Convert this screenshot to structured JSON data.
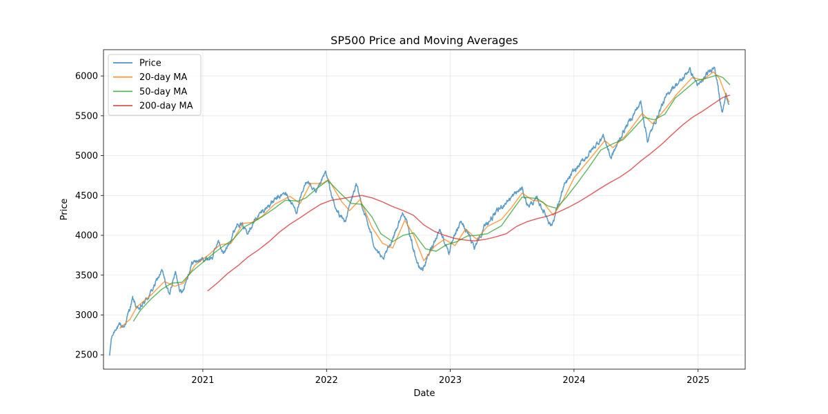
{
  "chart_data": {
    "type": "line",
    "title": "SP500 Price and Moving Averages",
    "xlabel": "Date",
    "ylabel": "Price",
    "x_range": [
      "2020-03-14",
      "2025-05-20"
    ],
    "ylim": [
      2320,
      6330
    ],
    "x_ticks": [
      {
        "date": "2021-01-01",
        "label": "2021"
      },
      {
        "date": "2022-01-01",
        "label": "2022"
      },
      {
        "date": "2023-01-01",
        "label": "2023"
      },
      {
        "date": "2024-01-01",
        "label": "2024"
      },
      {
        "date": "2025-01-01",
        "label": "2025"
      }
    ],
    "y_ticks": [
      2500,
      3000,
      3500,
      4000,
      4500,
      5000,
      5500,
      6000
    ],
    "grid": true,
    "legend_position": "top-left",
    "series": [
      {
        "name": "Price",
        "color": "#1f77b4",
        "noise": true,
        "points": [
          [
            "2020-04-01",
            2490
          ],
          [
            "2020-04-06",
            2700
          ],
          [
            "2020-04-20",
            2850
          ],
          [
            "2020-05-15",
            2860
          ],
          [
            "2020-06-08",
            3200
          ],
          [
            "2020-06-25",
            3050
          ],
          [
            "2020-08-01",
            3280
          ],
          [
            "2020-09-02",
            3560
          ],
          [
            "2020-09-23",
            3250
          ],
          [
            "2020-10-12",
            3530
          ],
          [
            "2020-10-30",
            3270
          ],
          [
            "2020-12-01",
            3660
          ],
          [
            "2021-01-04",
            3700
          ],
          [
            "2021-01-29",
            3720
          ],
          [
            "2021-02-15",
            3930
          ],
          [
            "2021-03-04",
            3760
          ],
          [
            "2021-04-15",
            4170
          ],
          [
            "2021-05-12",
            4060
          ],
          [
            "2021-06-15",
            4250
          ],
          [
            "2021-07-15",
            4380
          ],
          [
            "2021-08-15",
            4480
          ],
          [
            "2021-09-02",
            4530
          ],
          [
            "2021-10-04",
            4300
          ],
          [
            "2021-11-05",
            4700
          ],
          [
            "2021-12-01",
            4510
          ],
          [
            "2021-12-29",
            4790
          ],
          [
            "2022-01-27",
            4330
          ],
          [
            "2022-02-24",
            4170
          ],
          [
            "2022-03-29",
            4630
          ],
          [
            "2022-05-20",
            3900
          ],
          [
            "2022-06-16",
            3670
          ],
          [
            "2022-08-16",
            4300
          ],
          [
            "2022-09-30",
            3590
          ],
          [
            "2022-10-12",
            3580
          ],
          [
            "2022-11-30",
            4080
          ],
          [
            "2022-12-28",
            3790
          ],
          [
            "2023-02-02",
            4180
          ],
          [
            "2023-03-13",
            3860
          ],
          [
            "2023-04-15",
            4130
          ],
          [
            "2023-06-15",
            4420
          ],
          [
            "2023-07-31",
            4590
          ],
          [
            "2023-08-18",
            4370
          ],
          [
            "2023-09-15",
            4450
          ],
          [
            "2023-10-27",
            4120
          ],
          [
            "2023-12-01",
            4600
          ],
          [
            "2023-12-28",
            4780
          ],
          [
            "2024-02-15",
            5030
          ],
          [
            "2024-03-28",
            5250
          ],
          [
            "2024-04-19",
            4970
          ],
          [
            "2024-05-25",
            5300
          ],
          [
            "2024-07-16",
            5670
          ],
          [
            "2024-08-05",
            5190
          ],
          [
            "2024-09-15",
            5620
          ],
          [
            "2024-10-15",
            5850
          ],
          [
            "2024-11-15",
            5950
          ],
          [
            "2024-12-06",
            6090
          ],
          [
            "2025-01-02",
            5870
          ],
          [
            "2025-02-19",
            6140
          ],
          [
            "2025-03-13",
            5530
          ],
          [
            "2025-03-25",
            5770
          ],
          [
            "2025-04-03",
            5640
          ]
        ]
      },
      {
        "name": "20-day MA",
        "color": "#ff7f0e",
        "noise": false,
        "points": [
          [
            "2020-05-01",
            2830
          ],
          [
            "2020-06-01",
            2950
          ],
          [
            "2020-06-20",
            3100
          ],
          [
            "2020-08-01",
            3250
          ],
          [
            "2020-09-10",
            3420
          ],
          [
            "2020-10-10",
            3360
          ],
          [
            "2020-11-05",
            3400
          ],
          [
            "2020-12-10",
            3630
          ],
          [
            "2021-01-20",
            3760
          ],
          [
            "2021-02-20",
            3880
          ],
          [
            "2021-03-25",
            3900
          ],
          [
            "2021-04-30",
            4150
          ],
          [
            "2021-05-25",
            4160
          ],
          [
            "2021-06-25",
            4240
          ],
          [
            "2021-08-01",
            4390
          ],
          [
            "2021-09-15",
            4490
          ],
          [
            "2021-10-15",
            4400
          ],
          [
            "2021-11-15",
            4650
          ],
          [
            "2021-12-20",
            4650
          ],
          [
            "2022-01-07",
            4700
          ],
          [
            "2022-02-15",
            4420
          ],
          [
            "2022-03-10",
            4310
          ],
          [
            "2022-04-10",
            4450
          ],
          [
            "2022-05-15",
            4100
          ],
          [
            "2022-06-15",
            3900
          ],
          [
            "2022-07-15",
            3840
          ],
          [
            "2022-08-20",
            4190
          ],
          [
            "2022-09-15",
            4000
          ],
          [
            "2022-10-15",
            3680
          ],
          [
            "2022-11-15",
            3860
          ],
          [
            "2022-12-15",
            3950
          ],
          [
            "2023-01-15",
            3870
          ],
          [
            "2023-02-15",
            4080
          ],
          [
            "2023-03-20",
            3950
          ],
          [
            "2023-04-20",
            4110
          ],
          [
            "2023-06-01",
            4200
          ],
          [
            "2023-07-01",
            4350
          ],
          [
            "2023-08-01",
            4530
          ],
          [
            "2023-09-01",
            4440
          ],
          [
            "2023-10-01",
            4420
          ],
          [
            "2023-11-01",
            4250
          ],
          [
            "2023-12-01",
            4450
          ],
          [
            "2024-01-01",
            4720
          ],
          [
            "2024-02-15",
            4950
          ],
          [
            "2024-04-01",
            5190
          ],
          [
            "2024-04-25",
            5100
          ],
          [
            "2024-06-01",
            5250
          ],
          [
            "2024-07-20",
            5530
          ],
          [
            "2024-08-20",
            5400
          ],
          [
            "2024-09-25",
            5580
          ],
          [
            "2024-11-01",
            5780
          ],
          [
            "2024-12-15",
            5980
          ],
          [
            "2025-01-15",
            5950
          ],
          [
            "2025-02-15",
            6050
          ],
          [
            "2025-03-05",
            5970
          ],
          [
            "2025-03-20",
            5800
          ],
          [
            "2025-04-03",
            5670
          ]
        ]
      },
      {
        "name": "50-day MA",
        "color": "#2ca02c",
        "noise": false,
        "points": [
          [
            "2020-06-10",
            2920
          ],
          [
            "2020-07-01",
            3060
          ],
          [
            "2020-08-01",
            3200
          ],
          [
            "2020-09-01",
            3320
          ],
          [
            "2020-10-01",
            3400
          ],
          [
            "2020-11-01",
            3410
          ],
          [
            "2020-12-01",
            3550
          ],
          [
            "2021-01-01",
            3660
          ],
          [
            "2021-02-01",
            3770
          ],
          [
            "2021-03-01",
            3860
          ],
          [
            "2021-04-01",
            3950
          ],
          [
            "2021-05-01",
            4100
          ],
          [
            "2021-06-01",
            4170
          ],
          [
            "2021-07-01",
            4250
          ],
          [
            "2021-08-01",
            4340
          ],
          [
            "2021-09-01",
            4440
          ],
          [
            "2021-10-10",
            4430
          ],
          [
            "2021-11-01",
            4470
          ],
          [
            "2021-12-01",
            4580
          ],
          [
            "2022-01-05",
            4690
          ],
          [
            "2022-02-10",
            4530
          ],
          [
            "2022-03-15",
            4400
          ],
          [
            "2022-04-15",
            4390
          ],
          [
            "2022-05-15",
            4230
          ],
          [
            "2022-06-10",
            4020
          ],
          [
            "2022-07-15",
            3920
          ],
          [
            "2022-08-15",
            4000
          ],
          [
            "2022-09-15",
            4030
          ],
          [
            "2022-10-20",
            3830
          ],
          [
            "2022-11-20",
            3800
          ],
          [
            "2022-12-20",
            3880
          ],
          [
            "2023-01-20",
            3920
          ],
          [
            "2023-02-20",
            3990
          ],
          [
            "2023-03-20",
            4000
          ],
          [
            "2023-04-20",
            4020
          ],
          [
            "2023-06-01",
            4120
          ],
          [
            "2023-07-01",
            4300
          ],
          [
            "2023-08-01",
            4480
          ],
          [
            "2023-09-15",
            4460
          ],
          [
            "2023-10-15",
            4370
          ],
          [
            "2023-11-10",
            4340
          ],
          [
            "2023-12-10",
            4480
          ],
          [
            "2024-01-10",
            4650
          ],
          [
            "2024-02-15",
            4860
          ],
          [
            "2024-03-20",
            5070
          ],
          [
            "2024-04-25",
            5150
          ],
          [
            "2024-05-25",
            5200
          ],
          [
            "2024-06-25",
            5340
          ],
          [
            "2024-07-25",
            5480
          ],
          [
            "2024-08-25",
            5450
          ],
          [
            "2024-09-25",
            5520
          ],
          [
            "2024-10-25",
            5720
          ],
          [
            "2024-11-25",
            5830
          ],
          [
            "2024-12-25",
            5940
          ],
          [
            "2025-01-25",
            5970
          ],
          [
            "2025-02-25",
            6010
          ],
          [
            "2025-03-15",
            5980
          ],
          [
            "2025-04-05",
            5890
          ]
        ]
      },
      {
        "name": "200-day MA",
        "color": "#d62728",
        "noise": false,
        "points": [
          [
            "2021-01-15",
            3300
          ],
          [
            "2021-02-15",
            3410
          ],
          [
            "2021-03-15",
            3520
          ],
          [
            "2021-04-15",
            3620
          ],
          [
            "2021-05-15",
            3730
          ],
          [
            "2021-06-15",
            3820
          ],
          [
            "2021-07-15",
            3920
          ],
          [
            "2021-08-15",
            4040
          ],
          [
            "2021-09-15",
            4140
          ],
          [
            "2021-10-15",
            4220
          ],
          [
            "2021-11-15",
            4310
          ],
          [
            "2021-12-15",
            4390
          ],
          [
            "2022-01-15",
            4440
          ],
          [
            "2022-02-15",
            4460
          ],
          [
            "2022-03-15",
            4480
          ],
          [
            "2022-04-15",
            4500
          ],
          [
            "2022-05-15",
            4470
          ],
          [
            "2022-06-15",
            4420
          ],
          [
            "2022-07-15",
            4360
          ],
          [
            "2022-08-15",
            4310
          ],
          [
            "2022-09-15",
            4250
          ],
          [
            "2022-10-15",
            4130
          ],
          [
            "2022-11-15",
            4050
          ],
          [
            "2022-12-15",
            4000
          ],
          [
            "2023-01-15",
            3960
          ],
          [
            "2023-02-15",
            3940
          ],
          [
            "2023-03-15",
            3930
          ],
          [
            "2023-04-15",
            3950
          ],
          [
            "2023-05-15",
            3980
          ],
          [
            "2023-06-15",
            4020
          ],
          [
            "2023-07-15",
            4110
          ],
          [
            "2023-08-15",
            4170
          ],
          [
            "2023-09-15",
            4210
          ],
          [
            "2023-10-15",
            4240
          ],
          [
            "2023-11-15",
            4290
          ],
          [
            "2023-12-15",
            4350
          ],
          [
            "2024-01-15",
            4420
          ],
          [
            "2024-02-15",
            4500
          ],
          [
            "2024-03-15",
            4580
          ],
          [
            "2024-04-15",
            4660
          ],
          [
            "2024-05-15",
            4730
          ],
          [
            "2024-06-15",
            4820
          ],
          [
            "2024-07-15",
            4930
          ],
          [
            "2024-08-15",
            5030
          ],
          [
            "2024-09-15",
            5140
          ],
          [
            "2024-10-15",
            5260
          ],
          [
            "2024-11-15",
            5380
          ],
          [
            "2024-12-15",
            5480
          ],
          [
            "2025-01-15",
            5560
          ],
          [
            "2025-02-15",
            5650
          ],
          [
            "2025-03-15",
            5730
          ],
          [
            "2025-04-05",
            5760
          ]
        ]
      }
    ]
  }
}
